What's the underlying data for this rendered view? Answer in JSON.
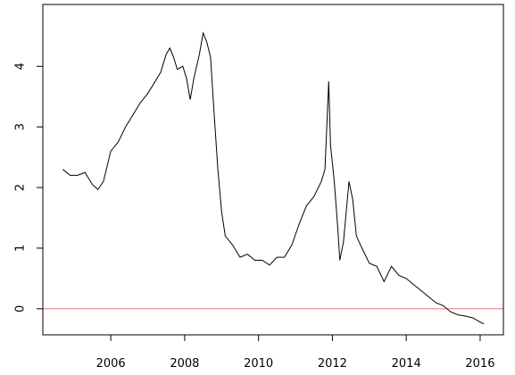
{
  "chart_data": {
    "type": "line",
    "x": [
      2004.7,
      2004.9,
      2005.1,
      2005.3,
      2005.5,
      2005.65,
      2005.8,
      2006.0,
      2006.2,
      2006.4,
      2006.6,
      2006.8,
      2007.0,
      2007.2,
      2007.35,
      2007.5,
      2007.6,
      2007.7,
      2007.8,
      2007.95,
      2008.05,
      2008.15,
      2008.25,
      2008.4,
      2008.5,
      2008.6,
      2008.7,
      2008.8,
      2008.9,
      2009.0,
      2009.1,
      2009.3,
      2009.5,
      2009.7,
      2009.9,
      2010.1,
      2010.3,
      2010.5,
      2010.7,
      2010.9,
      2011.1,
      2011.3,
      2011.5,
      2011.7,
      2011.8,
      2011.9,
      2011.95,
      2012.05,
      2012.15,
      2012.2,
      2012.3,
      2012.45,
      2012.55,
      2012.65,
      2012.8,
      2013.0,
      2013.2,
      2013.4,
      2013.6,
      2013.8,
      2014.0,
      2014.2,
      2014.4,
      2014.6,
      2014.8,
      2015.0,
      2015.2,
      2015.4,
      2015.6,
      2015.8,
      2016.0,
      2016.1
    ],
    "series": [
      {
        "color": "#000000",
        "values": [
          2.3,
          2.2,
          2.2,
          2.25,
          2.05,
          1.97,
          2.1,
          2.6,
          2.75,
          3.0,
          3.2,
          3.4,
          3.55,
          3.75,
          3.9,
          4.2,
          4.3,
          4.15,
          3.95,
          4.0,
          3.8,
          3.45,
          3.8,
          4.2,
          4.55,
          4.4,
          4.15,
          3.2,
          2.3,
          1.6,
          1.2,
          1.05,
          0.85,
          0.9,
          0.8,
          0.8,
          0.72,
          0.85,
          0.85,
          1.05,
          1.4,
          1.7,
          1.85,
          2.1,
          2.3,
          3.75,
          2.7,
          2.1,
          1.3,
          0.8,
          1.1,
          2.1,
          1.8,
          1.2,
          1.0,
          0.75,
          0.7,
          0.45,
          0.7,
          0.55,
          0.5,
          0.4,
          0.3,
          0.2,
          0.1,
          0.05,
          -0.05,
          -0.1,
          -0.12,
          -0.15,
          -0.22,
          -0.25
        ]
      }
    ],
    "hline": {
      "value": 0,
      "color": "#f08080"
    },
    "xlim": [
      2004.16,
      2016.63
    ],
    "ylim": [
      -0.43,
      5.02
    ],
    "xticks": [
      2006,
      2008,
      2010,
      2012,
      2014,
      2016
    ],
    "yticks": [
      0,
      1,
      2,
      3,
      4
    ]
  }
}
